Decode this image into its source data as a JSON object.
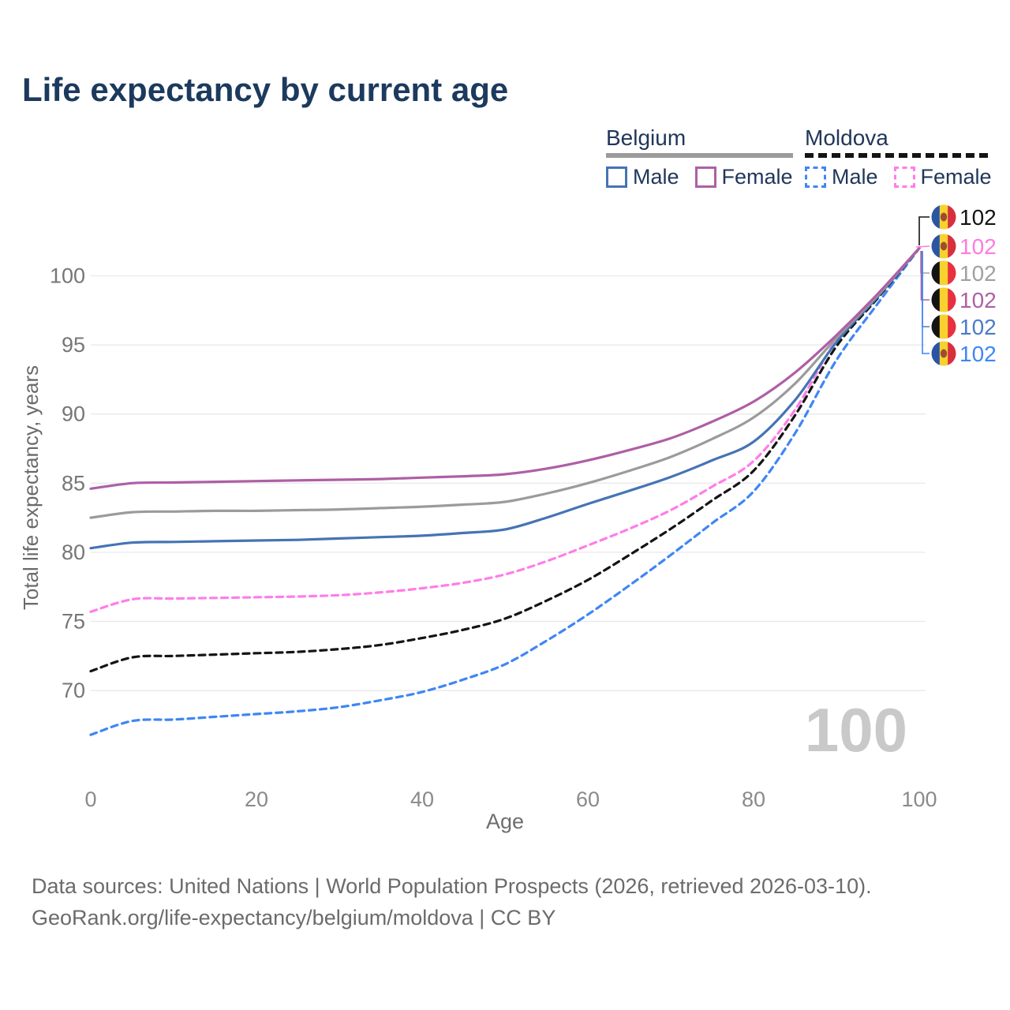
{
  "title": "Life expectancy by current age",
  "legend": {
    "belgium": {
      "label": "Belgium",
      "male": "Male",
      "female": "Female"
    },
    "moldova": {
      "label": "Moldova",
      "male": "Male",
      "female": "Female"
    }
  },
  "watermark": "100",
  "footer": {
    "line1": "Data sources: United Nations | World Population Prospects (2026, retrieved 2026-03-10).",
    "line2": "GeoRank.org/life-expectancy/belgium/moldova | CC BY"
  },
  "chart_data": {
    "type": "line",
    "title": "Life expectancy by current age",
    "xlabel": "Age",
    "ylabel": "Total life expectancy, years",
    "xlim": [
      0,
      100
    ],
    "ylim": [
      66,
      103.5
    ],
    "x_ticks": [
      0,
      20,
      40,
      60,
      80,
      100
    ],
    "y_ticks": [
      70,
      75,
      80,
      85,
      90,
      95,
      100
    ],
    "grid": "horizontal-only",
    "legend_position": "top-right",
    "ages": [
      0,
      5,
      10,
      15,
      20,
      25,
      30,
      35,
      40,
      45,
      50,
      55,
      60,
      65,
      70,
      75,
      80,
      85,
      90,
      95,
      100
    ],
    "series": [
      {
        "name": "Moldova Male",
        "country": "moldova",
        "sex": "male",
        "color": "#3f86f5",
        "dashed": true,
        "values": [
          66.8,
          67.8,
          67.9,
          68.1,
          68.3,
          68.5,
          68.8,
          69.3,
          69.9,
          70.8,
          71.9,
          73.6,
          75.5,
          77.6,
          79.8,
          82.1,
          84.4,
          88.6,
          93.9,
          98.0,
          102
        ]
      },
      {
        "name": "Moldova",
        "country": "moldova",
        "sex": "both",
        "color": "#141414",
        "dashed": true,
        "values": [
          71.4,
          72.4,
          72.5,
          72.6,
          72.7,
          72.8,
          73.0,
          73.3,
          73.8,
          74.4,
          75.2,
          76.5,
          78.0,
          79.8,
          81.7,
          83.75,
          85.9,
          89.9,
          94.9,
          98.4,
          102
        ]
      },
      {
        "name": "Moldova Female",
        "country": "moldova",
        "sex": "female",
        "color": "#ff7de8",
        "dashed": true,
        "values": [
          75.7,
          76.6,
          76.65,
          76.7,
          76.75,
          76.8,
          76.9,
          77.1,
          77.4,
          77.8,
          78.4,
          79.35,
          80.5,
          81.7,
          83.05,
          84.75,
          86.6,
          90.3,
          95.35,
          98.65,
          102
        ]
      },
      {
        "name": "Belgium Male",
        "country": "belgium",
        "sex": "male",
        "color": "#4574b4",
        "dashed": false,
        "values": [
          80.3,
          80.7,
          80.75,
          80.8,
          80.85,
          80.9,
          81.0,
          81.1,
          81.2,
          81.4,
          81.65,
          82.5,
          83.5,
          84.45,
          85.45,
          86.65,
          88.0,
          91.0,
          95.2,
          98.5,
          102
        ]
      },
      {
        "name": "Belgium",
        "country": "belgium",
        "sex": "both",
        "color": "#9b9b9b",
        "dashed": false,
        "values": [
          82.5,
          82.9,
          82.95,
          83.0,
          83.0,
          83.05,
          83.1,
          83.2,
          83.3,
          83.45,
          83.65,
          84.25,
          85.0,
          85.9,
          86.9,
          88.2,
          89.75,
          92.2,
          95.5,
          98.6,
          102
        ]
      },
      {
        "name": "Belgium Female",
        "country": "belgium",
        "sex": "female",
        "color": "#ae5fa5",
        "dashed": false,
        "values": [
          84.6,
          85.0,
          85.05,
          85.1,
          85.15,
          85.2,
          85.25,
          85.3,
          85.4,
          85.5,
          85.65,
          86.05,
          86.65,
          87.4,
          88.25,
          89.45,
          90.9,
          93.0,
          95.7,
          98.7,
          102
        ]
      }
    ],
    "end_labels": [
      {
        "series": "Moldova",
        "country": "moldova",
        "value": "102",
        "color": "#141414"
      },
      {
        "series": "Moldova Female",
        "country": "moldova",
        "value": "102",
        "color": "#ff7ae1"
      },
      {
        "series": "Belgium",
        "country": "belgium",
        "value": "102",
        "color": "#a0a0a0"
      },
      {
        "series": "Belgium Female",
        "country": "belgium",
        "value": "102",
        "color": "#ae5fa5"
      },
      {
        "series": "Belgium Male",
        "country": "belgium",
        "value": "102",
        "color": "#4a7cc7"
      },
      {
        "series": "Moldova Male",
        "country": "moldova",
        "value": "102",
        "color": "#3f86f5"
      }
    ],
    "flag_colors": {
      "moldova": {
        "left": "#2a55a4",
        "mid": "#f8d12e",
        "right": "#d62f3e",
        "emblem": "#8a5a28"
      },
      "belgium": {
        "left": "#141414",
        "mid": "#f8d12e",
        "right": "#e8303e"
      }
    }
  }
}
